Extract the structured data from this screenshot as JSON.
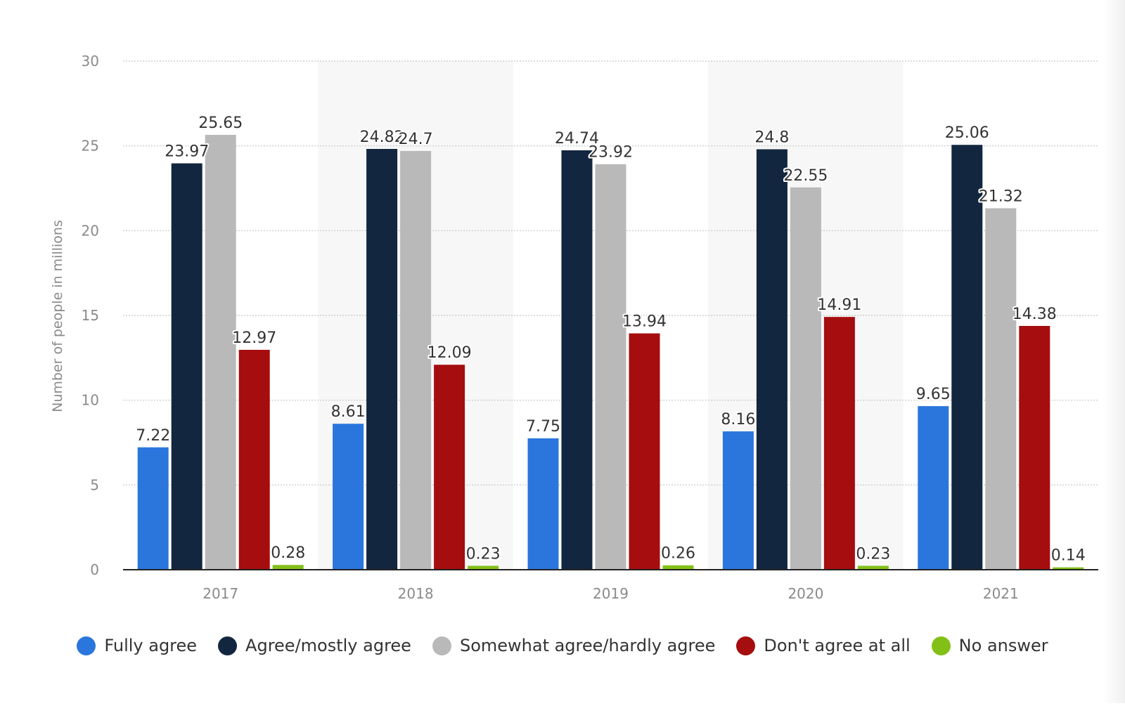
{
  "chart_data": {
    "type": "bar",
    "title": "",
    "xlabel": "",
    "ylabel": "Number of people in millions",
    "ylim": [
      0,
      30
    ],
    "yticks": [
      "0",
      "5",
      "10",
      "15",
      "20",
      "25",
      "30"
    ],
    "categories": [
      "2017",
      "2018",
      "2019",
      "2020",
      "2021"
    ],
    "series": [
      {
        "name": "Fully agree",
        "color": "#2a76dd",
        "values": [
          7.22,
          8.61,
          7.75,
          8.16,
          9.65
        ],
        "labels": [
          "7.22",
          "8.61",
          "7.75",
          "8.16",
          "9.65"
        ]
      },
      {
        "name": "Agree/mostly agree",
        "color": "#12263f",
        "values": [
          23.97,
          24.82,
          24.74,
          24.8,
          25.06
        ],
        "labels": [
          "23.97",
          "24.82",
          "24.74",
          "24.8",
          "25.06"
        ]
      },
      {
        "name": "Somewhat agree/hardly agree",
        "color": "#b9b9b9",
        "values": [
          25.65,
          24.7,
          23.92,
          22.55,
          21.32
        ],
        "labels": [
          "25.65",
          "24.7",
          "23.92",
          "22.55",
          "21.32"
        ]
      },
      {
        "name": "Don't agree at all",
        "color": "#a50d0e",
        "values": [
          12.97,
          12.09,
          13.94,
          14.91,
          14.38
        ],
        "labels": [
          "12.97",
          "12.09",
          "13.94",
          "14.91",
          "14.38"
        ]
      },
      {
        "name": "No answer",
        "color": "#83c017",
        "values": [
          0.28,
          0.23,
          0.26,
          0.23,
          0.14
        ],
        "labels": [
          "0.28",
          "0.23",
          "0.26",
          "0.23",
          "0.14"
        ]
      }
    ],
    "grid": true,
    "legend_position": "bottom"
  }
}
